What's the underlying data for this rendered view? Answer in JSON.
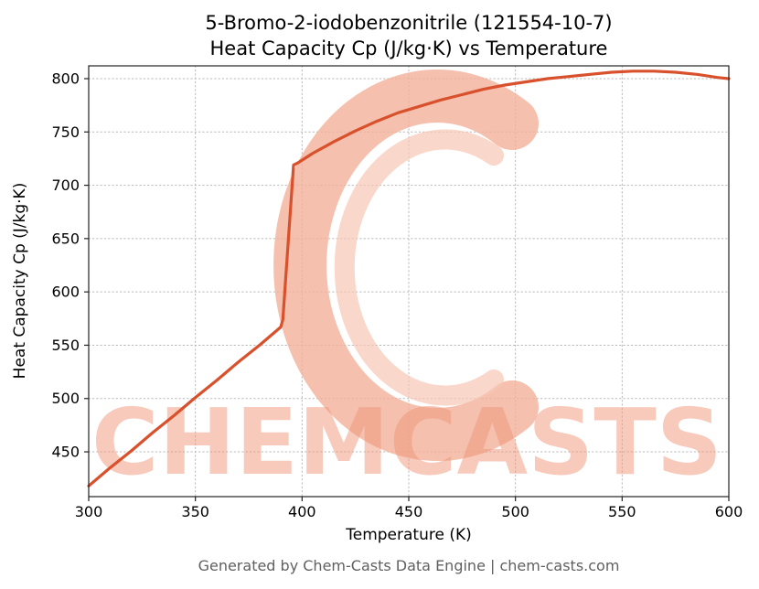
{
  "title_line1": "5-Bromo-2-iodobenzonitrile (121554-10-7)",
  "title_line2": "Heat Capacity Cp (J/kg·K) vs Temperature",
  "footer": "Generated by Chem-Casts Data Engine | chem-casts.com",
  "watermark": {
    "text": "CHEMCASTS",
    "color": "#ef9678",
    "logo_color": "#f3b09a"
  },
  "chart_data": {
    "type": "line",
    "title": "5-Bromo-2-iodobenzonitrile (121554-10-7) Heat Capacity Cp (J/kg·K) vs Temperature",
    "xlabel": "Temperature (K)",
    "ylabel": "Heat Capacity Cp (J/kg·K)",
    "xlim": [
      300,
      600
    ],
    "ylim": [
      408,
      812
    ],
    "xticks": [
      300,
      350,
      400,
      450,
      500,
      550,
      600
    ],
    "yticks": [
      450,
      500,
      550,
      600,
      650,
      700,
      750,
      800
    ],
    "grid": true,
    "legend": "none",
    "line_color": "#d9512c",
    "line_width": 3.2,
    "series": [
      {
        "name": "Heat Capacity Cp",
        "points": [
          [
            300,
            418
          ],
          [
            310,
            435
          ],
          [
            320,
            451
          ],
          [
            330,
            468
          ],
          [
            340,
            484
          ],
          [
            350,
            501
          ],
          [
            360,
            517
          ],
          [
            370,
            534
          ],
          [
            380,
            550
          ],
          [
            390,
            567
          ],
          [
            391,
            574
          ],
          [
            396,
            719
          ],
          [
            398,
            721
          ],
          [
            405,
            730
          ],
          [
            415,
            741
          ],
          [
            425,
            751
          ],
          [
            435,
            760
          ],
          [
            445,
            768
          ],
          [
            455,
            774
          ],
          [
            465,
            780
          ],
          [
            475,
            785
          ],
          [
            485,
            790
          ],
          [
            495,
            794
          ],
          [
            505,
            797
          ],
          [
            515,
            800
          ],
          [
            525,
            802
          ],
          [
            535,
            804
          ],
          [
            545,
            806
          ],
          [
            555,
            807
          ],
          [
            565,
            807
          ],
          [
            575,
            806
          ],
          [
            585,
            804
          ],
          [
            595,
            801
          ],
          [
            600,
            800
          ]
        ]
      }
    ]
  }
}
